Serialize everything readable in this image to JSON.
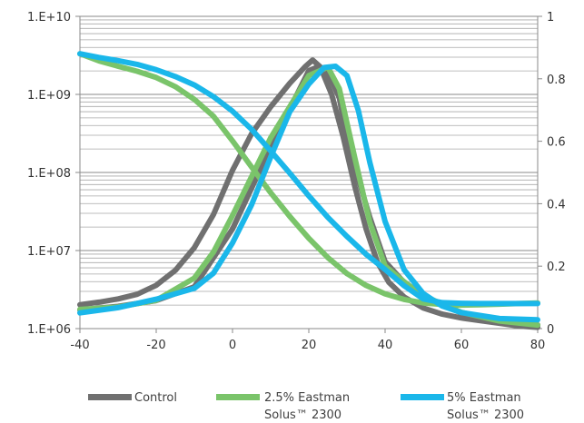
{
  "chart_data": {
    "type": "line",
    "title": "",
    "xlabel": "",
    "ylabel": "",
    "y2label": "",
    "x_ticks": [
      -40,
      -20,
      0,
      20,
      40,
      60,
      80
    ],
    "xlim": [
      -40,
      80
    ],
    "y_left": {
      "scale": "log",
      "lim": [
        1000000,
        10000000000
      ],
      "tick_values": [
        1000000,
        10000000,
        100000000,
        1000000000,
        10000000000
      ],
      "tick_labels": [
        "1.E+06",
        "1.E+07",
        "1.E+08",
        "1.E+09",
        "1.E+10"
      ]
    },
    "y_right": {
      "scale": "linear",
      "lim": [
        0,
        1
      ],
      "tick_values": [
        0,
        0.2,
        0.4,
        0.6,
        0.8,
        1
      ],
      "tick_labels": [
        "0",
        "0.2",
        "0.4",
        "0.6",
        "0.8",
        "1"
      ]
    },
    "grid": "horizontal minor log gridlines",
    "legend_position": "bottom",
    "series": [
      {
        "name": "Control",
        "color": "#707070",
        "x": [
          -40,
          -35,
          -30,
          -25,
          -20,
          -15,
          -10,
          -5,
          0,
          5,
          10,
          15,
          19,
          21,
          23,
          26,
          29,
          32,
          35,
          38,
          41,
          45,
          50,
          55,
          60,
          65,
          70,
          75,
          80
        ],
        "values": [
          0.0765,
          0.0845,
          0.0951,
          0.11,
          0.1386,
          0.1862,
          0.2592,
          0.3651,
          0.5069,
          0.6237,
          0.7102,
          0.7854,
          0.8384,
          0.8602,
          0.8384,
          0.7494,
          0.6152,
          0.4583,
          0.3202,
          0.2123,
          0.1481,
          0.1013,
          0.0659,
          0.0462,
          0.0339,
          0.0254,
          0.017,
          0.0085,
          0.0042
        ],
        "x2": [
          -40,
          -30,
          -20,
          -10,
          0,
          10,
          20,
          22,
          25,
          28,
          30,
          33,
          36,
          40,
          45,
          50,
          60,
          70,
          80
        ],
        "values2": [
          0.0592,
          0.0712,
          0.0897,
          0.1341,
          0.3193,
          0.5802,
          0.8261,
          0.8361,
          0.8202,
          0.7391,
          0.6091,
          0.4781,
          0.3561,
          0.2142,
          0.1481,
          0.0995,
          0.0503,
          0.0215,
          0.0117
        ]
      },
      {
        "name": "2.5% Eastman Solus™ 2300",
        "color": "#7ac46a",
        "x": [
          -40,
          -35,
          -30,
          -25,
          -20,
          -15,
          -10,
          -5,
          0,
          5,
          10,
          15,
          20,
          25,
          30,
          35,
          40,
          45,
          50,
          55,
          60,
          65,
          70,
          75,
          80
        ],
        "values": [
          0.8802,
          0.8572,
          0.8402,
          0.8242,
          0.8042,
          0.7751,
          0.7341,
          0.6802,
          0.6011,
          0.5173,
          0.4353,
          0.3593,
          0.2892,
          0.2272,
          0.1762,
          0.1383,
          0.1113,
          0.0933,
          0.0822,
          0.0772,
          0.0752,
          0.0762,
          0.0782,
          0.0802,
          0.0822
        ],
        "x2": [
          -40,
          -30,
          -20,
          -10,
          -5,
          0,
          10,
          20,
          25,
          28,
          32,
          36,
          40,
          45,
          50,
          60,
          70,
          80
        ],
        "values2": [
          0.0612,
          0.0692,
          0.0905,
          0.162,
          0.245,
          0.3622,
          0.6111,
          0.8102,
          0.8372,
          0.7682,
          0.5501,
          0.3402,
          0.2002,
          0.1501,
          0.1051,
          0.0521,
          0.0242,
          0.0112
        ]
      },
      {
        "name": "5% Eastman Solus™ 2300",
        "color": "#1ab7ea",
        "x": [
          -40,
          -35,
          -30,
          -25,
          -20,
          -15,
          -10,
          -5,
          0,
          5,
          10,
          15,
          20,
          25,
          30,
          35,
          40,
          45,
          50,
          55,
          60,
          65,
          70,
          75,
          80
        ],
        "values": [
          0.8802,
          0.8682,
          0.8582,
          0.8462,
          0.8292,
          0.8072,
          0.7802,
          0.7431,
          0.6962,
          0.6381,
          0.5691,
          0.4981,
          0.4251,
          0.3562,
          0.2952,
          0.2382,
          0.1892,
          0.1372,
          0.0952,
          0.0832,
          0.0812,
          0.0802,
          0.0802,
          0.0802,
          0.0802
        ],
        "x2": [
          -40,
          -30,
          -20,
          -10,
          -5,
          0,
          5,
          10,
          15,
          20,
          24,
          27,
          30,
          33,
          36,
          40,
          45,
          50,
          55,
          60,
          70,
          80
        ],
        "values2": [
          0.0502,
          0.0672,
          0.0942,
          0.1291,
          0.1772,
          0.2741,
          0.3962,
          0.5491,
          0.6941,
          0.7831,
          0.8361,
          0.8401,
          0.8101,
          0.6981,
          0.5321,
          0.3431,
          0.1881,
          0.1122,
          0.0721,
          0.0512,
          0.0322,
          0.0282
        ]
      }
    ]
  },
  "legend": [
    {
      "line1": "Control",
      "line2": ""
    },
    {
      "line1": "2.5% Eastman",
      "line2": "Solus™ 2300"
    },
    {
      "line1": "5% Eastman",
      "line2": "Solus™ 2300"
    }
  ]
}
